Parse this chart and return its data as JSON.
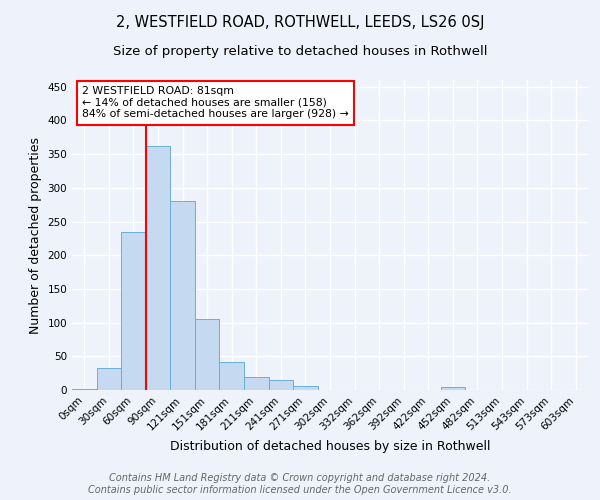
{
  "title": "2, WESTFIELD ROAD, ROTHWELL, LEEDS, LS26 0SJ",
  "subtitle": "Size of property relative to detached houses in Rothwell",
  "xlabel": "Distribution of detached houses by size in Rothwell",
  "ylabel": "Number of detached properties",
  "bar_labels": [
    "0sqm",
    "30sqm",
    "60sqm",
    "90sqm",
    "121sqm",
    "151sqm",
    "181sqm",
    "211sqm",
    "241sqm",
    "271sqm",
    "302sqm",
    "332sqm",
    "362sqm",
    "392sqm",
    "422sqm",
    "452sqm",
    "482sqm",
    "513sqm",
    "543sqm",
    "573sqm",
    "603sqm"
  ],
  "bar_values": [
    2,
    32,
    235,
    362,
    280,
    106,
    41,
    20,
    15,
    6,
    0,
    0,
    0,
    0,
    0,
    4,
    0,
    0,
    0,
    0,
    0
  ],
  "bar_color": "#c5d9f0",
  "bar_edge_color": "#6aaed6",
  "annotation_text": "2 WESTFIELD ROAD: 81sqm\n← 14% of detached houses are smaller (158)\n84% of semi-detached houses are larger (928) →",
  "annotation_box_facecolor": "white",
  "annotation_box_edgecolor": "red",
  "footer_text": "Contains HM Land Registry data © Crown copyright and database right 2024.\nContains public sector information licensed under the Open Government Licence v3.0.",
  "ylim": [
    0,
    460
  ],
  "yticks": [
    0,
    50,
    100,
    150,
    200,
    250,
    300,
    350,
    400,
    450
  ],
  "background_color": "#eef2fa",
  "grid_color": "white",
  "title_fontsize": 10.5,
  "subtitle_fontsize": 9.5,
  "axis_label_fontsize": 9,
  "tick_fontsize": 7.5,
  "footer_fontsize": 7,
  "red_line_bin": 3
}
